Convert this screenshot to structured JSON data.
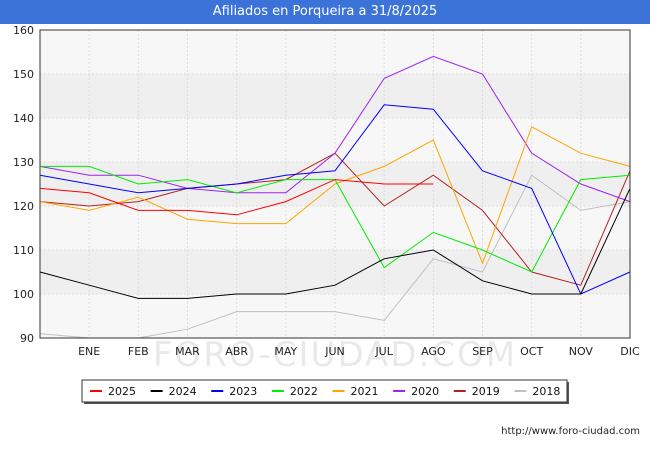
{
  "header": {
    "title": "Afiliados en Porqueira a 31/8/2025"
  },
  "footer": {
    "url": "http://www.foro-ciudad.com"
  },
  "watermark": "FORO-CIUDAD.COM",
  "chart_data": {
    "type": "line",
    "title": "Afiliados en Porqueira a 31/8/2025",
    "categories": [
      "",
      "ENE",
      "FEB",
      "MAR",
      "ABR",
      "MAY",
      "JUN",
      "JUL",
      "AGO",
      "SEP",
      "OCT",
      "NOV",
      "DIC"
    ],
    "ylim": [
      90,
      160
    ],
    "yticks": [
      90,
      100,
      110,
      120,
      130,
      140,
      150,
      160
    ],
    "grid": true,
    "legend_position": "bottom",
    "series": [
      {
        "name": "2025",
        "color": "#ff0000",
        "values": [
          124,
          123,
          119,
          119,
          118,
          121,
          126,
          125,
          125,
          null,
          null,
          null,
          null
        ]
      },
      {
        "name": "2024",
        "color": "#000000",
        "values": [
          105,
          102,
          99,
          99,
          100,
          100,
          102,
          108,
          110,
          103,
          100,
          100,
          124
        ]
      },
      {
        "name": "2023",
        "color": "#0000ff",
        "values": [
          127,
          125,
          123,
          124,
          125,
          127,
          128,
          143,
          142,
          128,
          124,
          100,
          105
        ]
      },
      {
        "name": "2022",
        "color": "#00ee00",
        "values": [
          129,
          129,
          125,
          126,
          123,
          126,
          126,
          106,
          114,
          110,
          105,
          126,
          127
        ]
      },
      {
        "name": "2021",
        "color": "#ffa500",
        "values": [
          121,
          119,
          122,
          117,
          116,
          116,
          125,
          129,
          135,
          107,
          138,
          132,
          129
        ]
      },
      {
        "name": "2020",
        "color": "#a020f0",
        "values": [
          129,
          127,
          127,
          124,
          123,
          123,
          132,
          149,
          154,
          150,
          132,
          125,
          121
        ]
      },
      {
        "name": "2019",
        "color": "#b22222",
        "values": [
          121,
          120,
          121,
          124,
          125,
          126,
          132,
          120,
          127,
          119,
          105,
          102,
          128
        ]
      },
      {
        "name": "2018",
        "color": "#c0c0c0",
        "values": [
          91,
          90,
          90,
          92,
          96,
          96,
          96,
          94,
          108,
          105,
          127,
          119,
          121
        ]
      }
    ]
  }
}
